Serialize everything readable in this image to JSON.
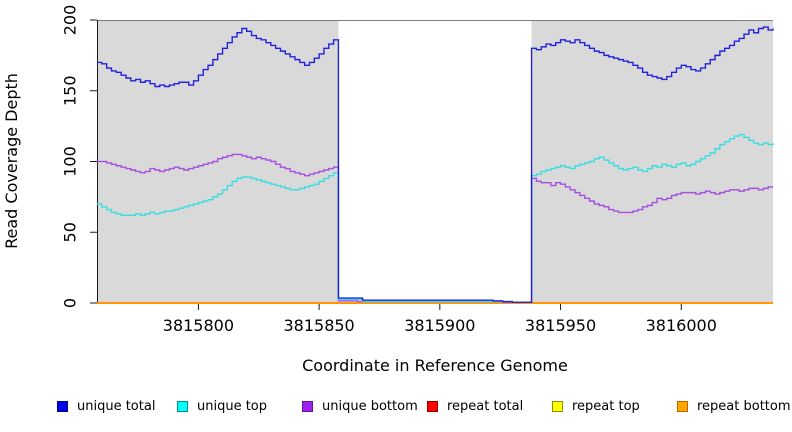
{
  "chart_data": {
    "type": "line",
    "title": "",
    "xlabel": "Coordinate in Reference Genome",
    "ylabel": "Read Coverage Depth",
    "xlim": [
      3815758,
      3816038
    ],
    "ylim": [
      0,
      200
    ],
    "x_ticks": [
      3815800,
      3815850,
      3815900,
      3815950,
      3816000
    ],
    "y_ticks": [
      0,
      50,
      100,
      150,
      200
    ],
    "grid": false,
    "step_lines": true,
    "legend_position": "bottom",
    "background_color": "#ffffff",
    "plot_border_top_color": "#7f7f7f",
    "axis_color": "#1a1a1a",
    "shade_color": "#d9d9d9",
    "shaded_regions": [
      {
        "x0": 3815758,
        "x1": 3815858
      },
      {
        "x0": 3815938,
        "x1": 3816038
      }
    ],
    "x_start": 3815758,
    "x_step": 2,
    "series": [
      {
        "name": "unique total",
        "color": "#2222dd",
        "legend_fill": "#0000e6",
        "legend_border": "#000080",
        "width": 1.4,
        "values": [
          170,
          169,
          166,
          164,
          163,
          161,
          159,
          157,
          158,
          156,
          157,
          155,
          153,
          154,
          153,
          154,
          155,
          156,
          156,
          154,
          157,
          161,
          165,
          168,
          172,
          176,
          180,
          184,
          188,
          191,
          194,
          192,
          189,
          187,
          186,
          184,
          182,
          180,
          178,
          176,
          174,
          172,
          170,
          168,
          170,
          173,
          176,
          180,
          183,
          186,
          3.5,
          3.5,
          3.5,
          3.5,
          3.5,
          2,
          2,
          2,
          2,
          2,
          2,
          2,
          2,
          2,
          2,
          2,
          2,
          2,
          2,
          2,
          2,
          2,
          2,
          2,
          2,
          2,
          2,
          2,
          2,
          2,
          2,
          2,
          1.5,
          1.5,
          1,
          1,
          0.5,
          0.5,
          0.5,
          0.5,
          180,
          179,
          181,
          183,
          182,
          184,
          186,
          185,
          184,
          186,
          184,
          182,
          180,
          178,
          177,
          175,
          174,
          173,
          172,
          171,
          170,
          168,
          166,
          163,
          161,
          160,
          159,
          158,
          160,
          163,
          166,
          168,
          167,
          165,
          164,
          166,
          169,
          172,
          175,
          178,
          180,
          182,
          185,
          187,
          190,
          193,
          191,
          194,
          195,
          193,
          194
        ]
      },
      {
        "name": "unique top",
        "color": "#3adde0",
        "legend_fill": "#00ffff",
        "legend_border": "#008b8b",
        "width": 1.4,
        "values": [
          70,
          68,
          66,
          64,
          63,
          62,
          62,
          62,
          63,
          62,
          63,
          64,
          63,
          64,
          65,
          65,
          66,
          67,
          68,
          69,
          70,
          71,
          72,
          73,
          75,
          77,
          80,
          83,
          86,
          88,
          89,
          89,
          88,
          87,
          86,
          85,
          84,
          83,
          82,
          81,
          80,
          80,
          81,
          82,
          83,
          84,
          86,
          88,
          90,
          92,
          2.5,
          2.5,
          2.5,
          2.5,
          2.5,
          1,
          1,
          1,
          1,
          1,
          1,
          1,
          1,
          1,
          1,
          1,
          1,
          1,
          1,
          1,
          1,
          1,
          1,
          1,
          1,
          1,
          1,
          1,
          1,
          1,
          1,
          1,
          1,
          1,
          1,
          1,
          0.5,
          0.5,
          0.5,
          0.5,
          90,
          91,
          93,
          94,
          95,
          96,
          97,
          96,
          95,
          97,
          98,
          99,
          100,
          102,
          103,
          101,
          99,
          97,
          95,
          94,
          95,
          96,
          94,
          93,
          95,
          97,
          96,
          98,
          97,
          96,
          98,
          99,
          97,
          98,
          100,
          102,
          104,
          106,
          109,
          112,
          114,
          116,
          118,
          119,
          117,
          115,
          113,
          112,
          113,
          112,
          113
        ]
      },
      {
        "name": "unique bottom",
        "color": "#a64fe0",
        "legend_fill": "#a020f0",
        "legend_border": "#5e1799",
        "width": 1.4,
        "values": [
          100,
          100,
          99,
          98,
          97,
          96,
          95,
          94,
          93,
          92,
          93,
          95,
          94,
          93,
          94,
          95,
          96,
          95,
          94,
          95,
          96,
          97,
          98,
          99,
          100,
          102,
          103,
          104,
          105,
          105,
          104,
          103,
          102,
          103,
          102,
          101,
          100,
          98,
          96,
          95,
          93,
          92,
          91,
          90,
          91,
          92,
          93,
          94,
          95,
          96,
          1.5,
          1.5,
          1.5,
          1.5,
          1,
          1,
          1,
          1,
          1,
          1,
          1,
          1,
          1,
          1,
          1,
          1,
          1,
          1,
          1,
          1,
          1,
          1,
          1,
          1,
          1,
          1,
          1,
          1,
          1,
          1,
          1,
          1,
          1,
          1,
          0.5,
          0.5,
          0.5,
          0.5,
          0.5,
          0.5,
          88,
          86,
          85,
          85,
          83,
          85,
          84,
          82,
          80,
          78,
          76,
          74,
          72,
          70,
          69,
          68,
          66,
          65,
          64,
          64,
          64,
          65,
          66,
          68,
          69,
          71,
          74,
          73,
          74,
          76,
          77,
          78,
          78,
          78,
          77,
          78,
          79,
          78,
          77,
          78,
          79,
          80,
          80,
          79,
          80,
          81,
          81,
          80,
          81,
          82,
          82
        ]
      },
      {
        "name": "repeat total",
        "color": "#dd0000",
        "legend_fill": "#ff0000",
        "legend_border": "#8b0000",
        "width": 1.4,
        "constant": 0
      },
      {
        "name": "repeat top",
        "color": "#eeee00",
        "legend_fill": "#ffff00",
        "legend_border": "#8f8f00",
        "width": 1.4,
        "constant": 0
      },
      {
        "name": "repeat bottom",
        "color": "#ff9800",
        "legend_fill": "#ffa500",
        "legend_border": "#b36b00",
        "width": 2,
        "constant": 0
      }
    ],
    "draw_order": [
      3,
      4,
      5,
      2,
      1,
      0
    ]
  }
}
